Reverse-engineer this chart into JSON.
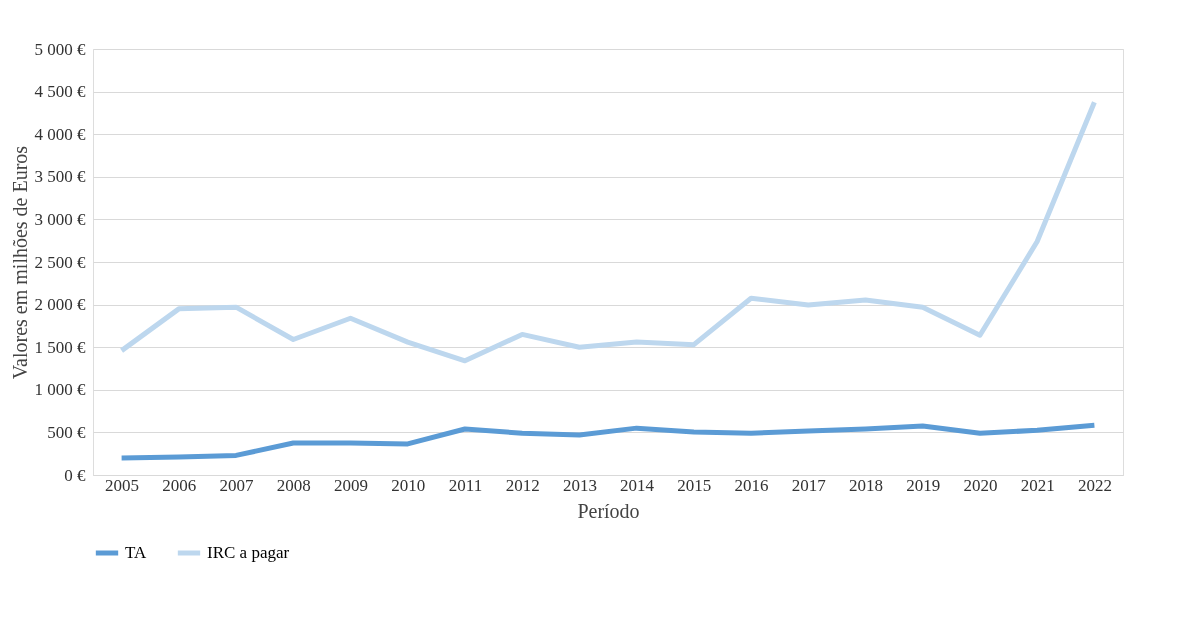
{
  "chart_data": {
    "type": "line",
    "xlabel": "Período",
    "ylabel": "Valores em milhões de Euros",
    "categories": [
      "2005",
      "2006",
      "2007",
      "2008",
      "2009",
      "2010",
      "2011",
      "2012",
      "2013",
      "2014",
      "2015",
      "2016",
      "2017",
      "2018",
      "2019",
      "2020",
      "2021",
      "2022"
    ],
    "series": [
      {
        "name": "TA",
        "color": "#5b9bd5",
        "values": [
          200,
          210,
          230,
          375,
          375,
          365,
          540,
          490,
          470,
          550,
          505,
          490,
          515,
          540,
          575,
          490,
          525,
          585
        ]
      },
      {
        "name": "IRC a pagar",
        "color": "#bdd7ee",
        "values": [
          1460,
          1950,
          1970,
          1590,
          1840,
          1560,
          1340,
          1650,
          1500,
          1560,
          1530,
          2075,
          1995,
          2055,
          1970,
          1640,
          2740,
          4375
        ]
      }
    ],
    "ylim": [
      0,
      5000
    ],
    "yticks": [
      {
        "value": 0,
        "label": "0 €"
      },
      {
        "value": 500,
        "label": "500 €"
      },
      {
        "value": 1000,
        "label": "1 000 €"
      },
      {
        "value": 1500,
        "label": "1 500 €"
      },
      {
        "value": 2000,
        "label": "2 000 €"
      },
      {
        "value": 2500,
        "label": "2 500 €"
      },
      {
        "value": 3000,
        "label": "3 000 €"
      },
      {
        "value": 3500,
        "label": "3 500 €"
      },
      {
        "value": 4000,
        "label": "4 000 €"
      },
      {
        "value": 4500,
        "label": "4 500 €"
      },
      {
        "value": 5000,
        "label": "5 000 €"
      }
    ],
    "grid": "y",
    "legend": "bottom",
    "marker": "none",
    "line_style": "solid"
  }
}
